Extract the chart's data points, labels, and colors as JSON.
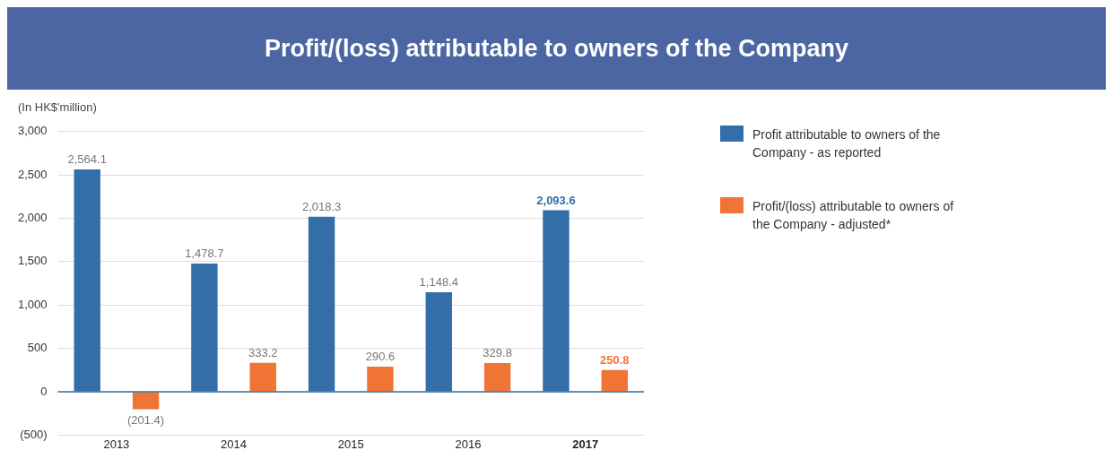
{
  "chart_data": {
    "type": "bar",
    "title": "Profit/(loss) attributable to owners of the Company",
    "ylabel": "(In HK$'million)",
    "categories": [
      "2013",
      "2014",
      "2015",
      "2016",
      "2017"
    ],
    "series": [
      {
        "name": "Profit attributable to owners of the Company - as reported",
        "color": "#336ea8",
        "values": [
          2564.1,
          1478.7,
          2018.3,
          1148.4,
          2093.6
        ],
        "value_labels": [
          "2,564.1",
          "1,478.7",
          "2,018.3",
          "1,148.4",
          "2,093.6"
        ]
      },
      {
        "name": "Profit/(loss) attributable to owners of the Company - adjusted*",
        "color": "#f07534",
        "values": [
          -201.4,
          333.2,
          290.6,
          329.8,
          250.8
        ],
        "value_labels": [
          "(201.4)",
          "333.2",
          "290.6",
          "329.8",
          "250.8"
        ]
      }
    ],
    "ylim": [
      -500,
      3000
    ],
    "yticks": [
      {
        "value": -500,
        "label": "(500)"
      },
      {
        "value": 0,
        "label": "0"
      },
      {
        "value": 500,
        "label": "500"
      },
      {
        "value": 1000,
        "label": "1,000"
      },
      {
        "value": 1500,
        "label": "1,500"
      },
      {
        "value": 2000,
        "label": "2,000"
      },
      {
        "value": 2500,
        "label": "2,500"
      },
      {
        "value": 3000,
        "label": "3,000"
      }
    ],
    "ref_lines": [
      {
        "axis": "y",
        "value": 0,
        "color": "#336ea8"
      }
    ],
    "grid": "y",
    "legend": "top right"
  }
}
